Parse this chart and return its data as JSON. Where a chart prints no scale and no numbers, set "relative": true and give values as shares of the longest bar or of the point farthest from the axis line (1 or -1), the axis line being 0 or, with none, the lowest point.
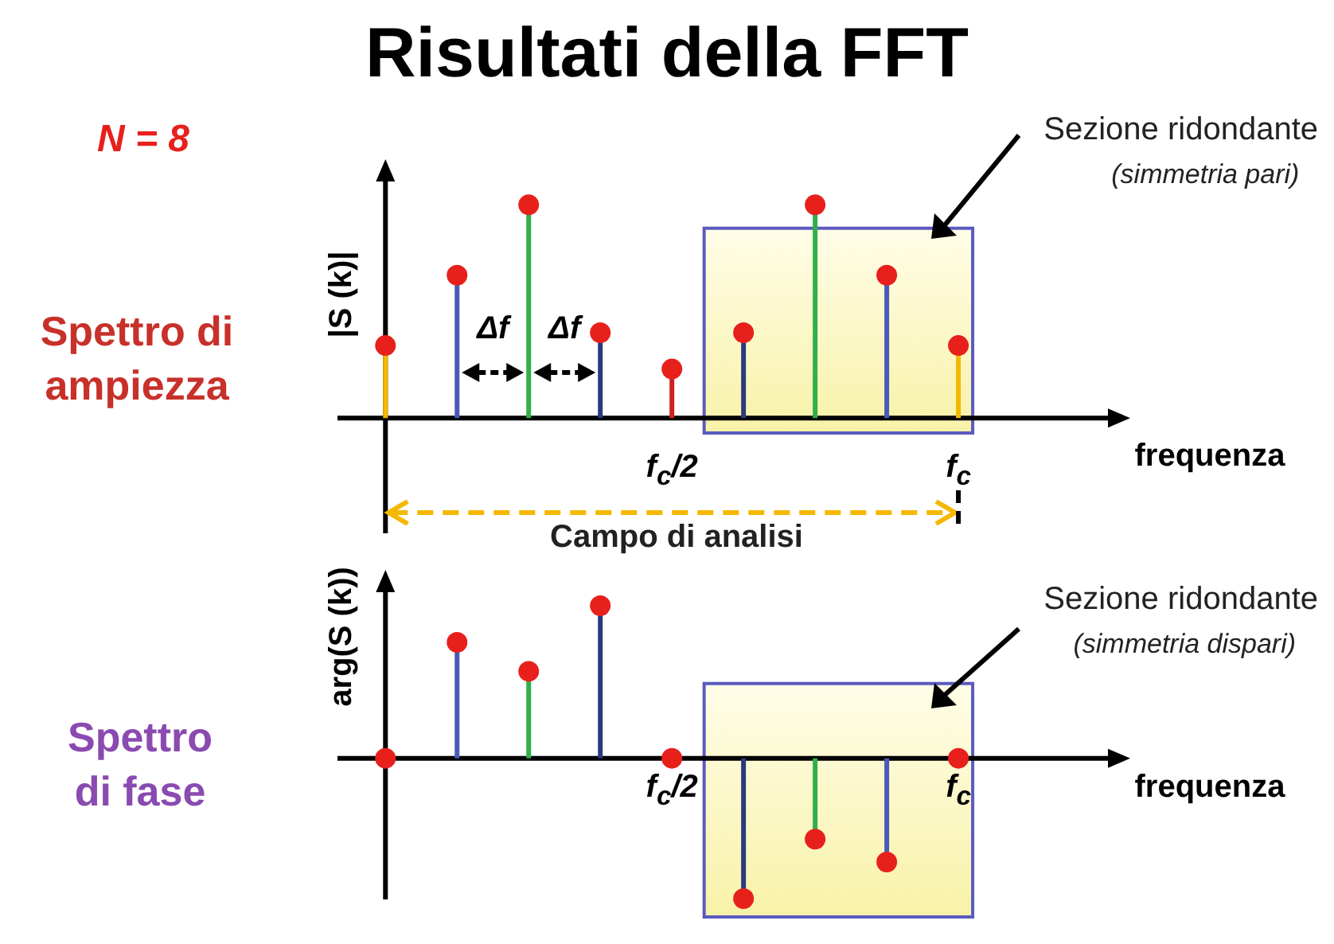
{
  "chart_data": [
    {
      "type": "lollipop",
      "title": "Risultati della FFT",
      "xlabel": "frequenza",
      "ylabel": "|S (k)|",
      "relative": true,
      "marker": "circle",
      "categories": [
        null,
        null,
        null,
        null,
        "f$_{c}$/2",
        null,
        null,
        null,
        "f$_{c}$"
      ],
      "values": [
        0.34,
        0.67,
        1,
        0.4,
        0.23,
        0.4,
        1,
        0.67,
        0.34
      ],
      "color": "#e8201c",
      "annotations": [
        "N = 8",
        "Spettro di ampiezza",
        "Sezione ridondante",
        "(simmetria pari)",
        "Δf",
        "Δf",
        "Campo di analisi"
      ]
    },
    {
      "type": "lollipop",
      "xlabel": "frequenza",
      "ylabel": "arg(S (k))",
      "relative": true,
      "marker": "circle",
      "categories": [
        null,
        null,
        null,
        null,
        "f$_{c}$/2",
        null,
        null,
        null,
        "f$_{c}$"
      ],
      "values": [
        0,
        0.76,
        0.57,
        1,
        0,
        -0.92,
        -0.53,
        -0.68,
        0
      ],
      "color": "#e8201c",
      "annotations": [
        "Spettro di fase",
        "Sezione ridondante",
        "(simmetria dispari)"
      ]
    }
  ]
}
